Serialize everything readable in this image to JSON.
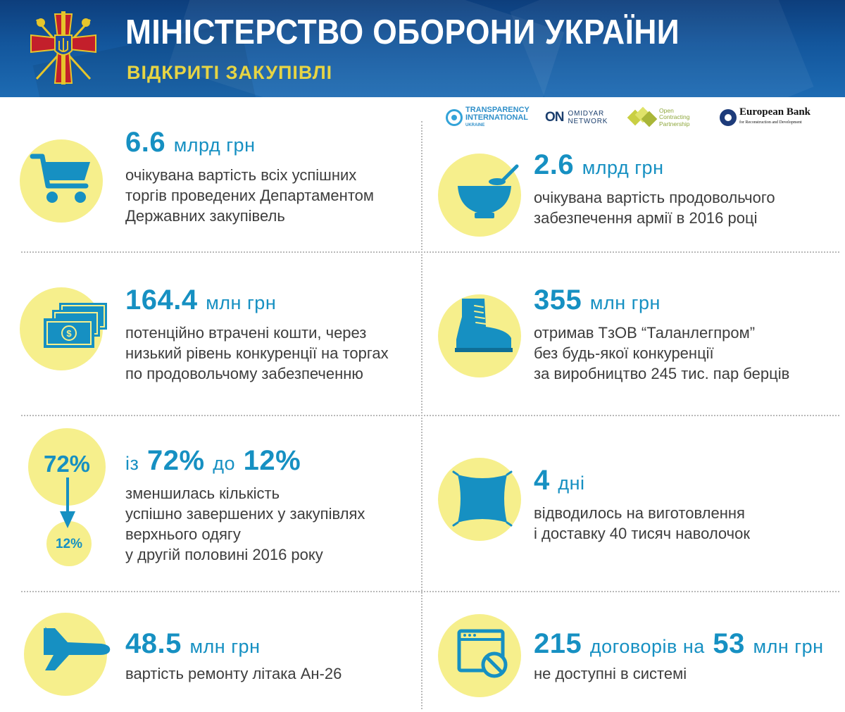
{
  "header": {
    "title": "МІНІСТЕРСТВО ОБОРОНИ УКРАЇНИ",
    "subtitle": "ВІДКРИТІ ЗАКУПІВЛІ",
    "emblem_icon": "defense-ministry-emblem-icon"
  },
  "partners": {
    "ti": {
      "line1": "TRANSPARENCY",
      "line2": "INTERNATIONAL",
      "line3": "UKRAINE"
    },
    "omidyar": {
      "mark": "ON",
      "line1": "OMIDYAR",
      "line2": "NETWORK"
    },
    "ocp": {
      "line1": "Open",
      "line2": "Contracting",
      "line3": "Partnership"
    },
    "ebrd": {
      "line1": "European Bank",
      "line2": "for Reconstruction and Development"
    }
  },
  "items": {
    "cart": {
      "icon": "shopping-cart-icon",
      "value": "6.6",
      "unit": "млрд грн",
      "lines": [
        "очікувана вартість всіх успішних",
        "торгів проведених Департаментом",
        "Державних закупівель"
      ]
    },
    "food": {
      "icon": "bowl-icon",
      "value": "2.6",
      "unit": "млрд грн",
      "lines": [
        "очікувана вартість продовольчого",
        "забезпечення армії в 2016 році"
      ]
    },
    "money": {
      "icon": "banknotes-icon",
      "value": "164.4",
      "unit": "млн грн",
      "lines": [
        "потенційно втрачені кошти, через",
        "низький рівень конкуренції на торгах",
        "по продовольчому забезпеченню"
      ]
    },
    "boots": {
      "icon": "boot-icon",
      "value": "355",
      "unit": "млн грн",
      "lines": [
        "отримав ТзОВ “Таланлегпром”",
        "без будь-якої конкуренції",
        "за виробництво 245 тис. пар берців"
      ]
    },
    "clothing": {
      "icon": "down-arrow-icon",
      "circle_from": "72%",
      "circle_to": "12%",
      "prefix": "із",
      "from": "72%",
      "mid": "до",
      "to": "12%",
      "lines": [
        "зменшилась кількість",
        "успішно завершених у закупівлях",
        "верхнього одягу",
        "у другій половині 2016 року"
      ]
    },
    "pillow": {
      "icon": "pillow-icon",
      "value": "4",
      "unit": "дні",
      "lines": [
        "відводилось на виготовлення",
        "і доставку 40 тисяч наволочок"
      ]
    },
    "plane": {
      "icon": "airplane-icon",
      "value": "48.5",
      "unit": "млн грн",
      "lines": [
        "вартість ремонту літака Ан-26"
      ]
    },
    "contracts": {
      "icon": "blocked-browser-icon",
      "value": "215",
      "unit1": "договорів на",
      "value2": "53",
      "unit2": "млн грн",
      "lines": [
        "не доступні в системі"
      ]
    }
  },
  "colors": {
    "accent": "#1690c2",
    "circle": "#f6ef8c",
    "header": "#13569c",
    "subtitle": "#e6d444"
  }
}
